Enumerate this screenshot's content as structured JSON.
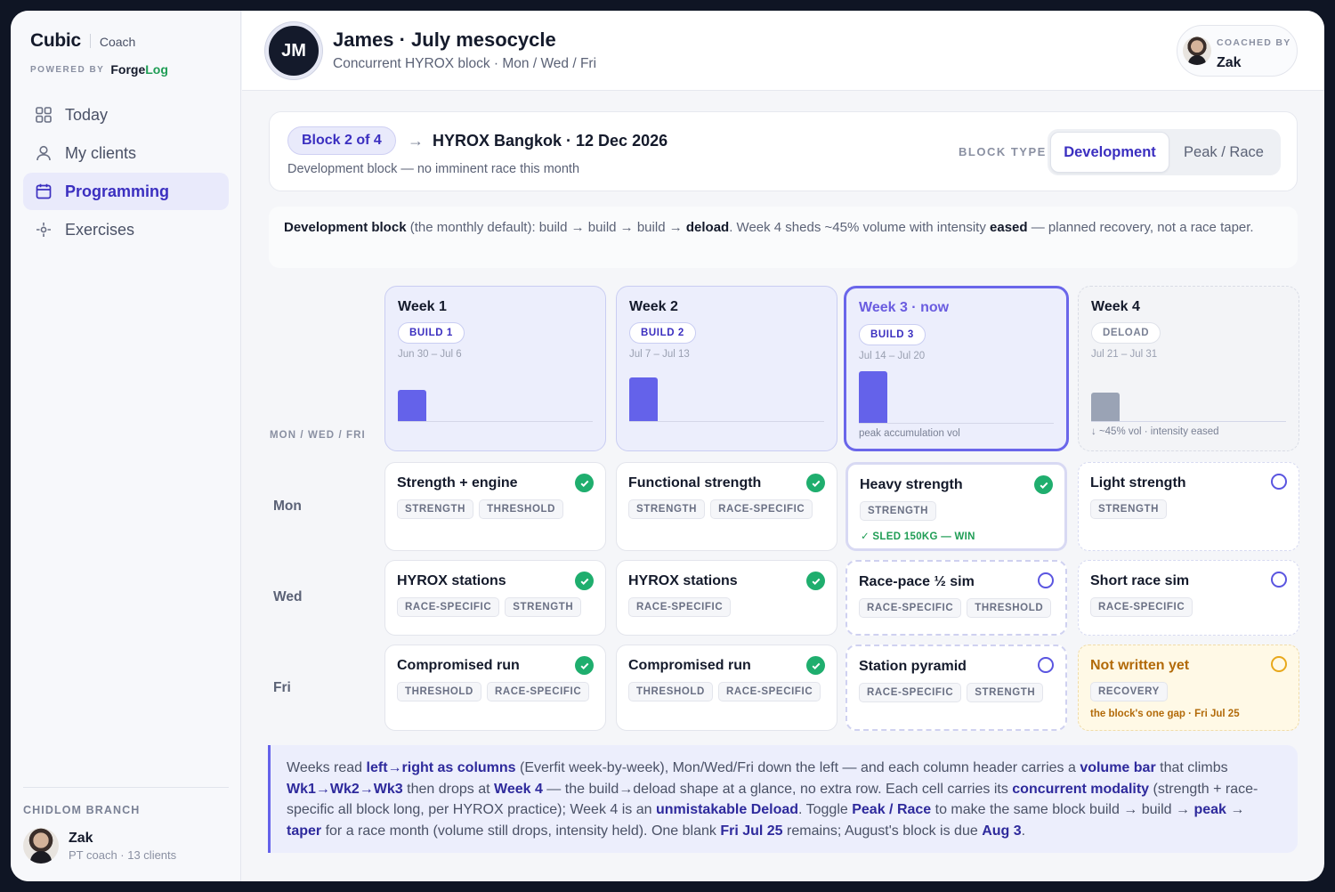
{
  "sidebar": {
    "brand": "Cubic",
    "role": "Coach",
    "powered_by": "POWERED BY",
    "forgelog_a": "Forge",
    "forgelog_b": "Log",
    "nav": [
      {
        "label": "Today",
        "icon": "grid-icon"
      },
      {
        "label": "My clients",
        "icon": "user-icon"
      },
      {
        "label": "Programming",
        "icon": "calendar-icon",
        "active": true
      },
      {
        "label": "Exercises",
        "icon": "sparkle-icon"
      }
    ],
    "branch": "CHIDLOM BRANCH",
    "user": {
      "name": "Zak",
      "sub": "PT coach · 13 clients"
    }
  },
  "header": {
    "initials": "JM",
    "title": "James · July mesocycle",
    "subtitle": "Concurrent HYROX block · Mon / Wed / Fri",
    "coached_by": "COACHED BY",
    "coach": "Zak"
  },
  "block": {
    "pill": "Block 2 of 4",
    "arrow": "→",
    "race": "HYROX Bangkok · 12 Dec 2026",
    "desc": "Development block — no imminent race this month",
    "type_label": "BLOCK TYPE",
    "options": [
      "Development",
      "Peak / Race"
    ],
    "selected": "Development"
  },
  "note": {
    "b1": "Development block",
    "t1": " (the monthly default): build → build → build → ",
    "b2": "deload",
    "t2": ". Week 4 sheds ~45% volume with intensity ",
    "b3": "eased",
    "t3": " — planned recovery, not a race taper."
  },
  "grid": {
    "days_label": "MON / WED / FRI",
    "rows": [
      "Mon",
      "Wed",
      "Fri"
    ],
    "weeks": [
      {
        "title": "Week 1",
        "tag": "BUILD 1",
        "dates": "Jun 30 – Jul 6",
        "caption": "",
        "volume": 0.6
      },
      {
        "title": "Week 2",
        "tag": "BUILD 2",
        "dates": "Jul 7 – Jul 13",
        "caption": "",
        "volume": 0.85
      },
      {
        "title": "Week 3 · now",
        "tag": "BUILD 3",
        "dates": "Jul 14 – Jul 20",
        "caption": "peak accumulation vol",
        "volume": 1.0
      },
      {
        "title": "Week 4",
        "tag": "DELOAD",
        "dates": "Jul 21 – Jul 31",
        "caption": "↓ ~45% vol · intensity eased",
        "volume": 0.55
      }
    ],
    "cells": [
      [
        {
          "title": "Strength + engine",
          "chips": [
            "STRENGTH",
            "THRESHOLD"
          ],
          "status": "done"
        },
        {
          "title": "Functional strength",
          "chips": [
            "STRENGTH",
            "RACE-SPECIFIC"
          ],
          "status": "done"
        },
        {
          "title": "Heavy strength",
          "chips": [
            "STRENGTH"
          ],
          "status": "done",
          "extra": "✓  SLED 150KG — WIN"
        },
        {
          "title": "Light strength",
          "chips": [
            "STRENGTH"
          ],
          "status": "open"
        }
      ],
      [
        {
          "title": "HYROX stations",
          "chips": [
            "RACE-SPECIFIC",
            "STRENGTH"
          ],
          "status": "done"
        },
        {
          "title": "HYROX stations",
          "chips": [
            "RACE-SPECIFIC"
          ],
          "status": "done"
        },
        {
          "title": "Race-pace ½ sim",
          "chips": [
            "RACE-SPECIFIC",
            "THRESHOLD"
          ],
          "status": "open"
        },
        {
          "title": "Short race sim",
          "chips": [
            "RACE-SPECIFIC"
          ],
          "status": "open"
        }
      ],
      [
        {
          "title": "Compromised run",
          "chips": [
            "THRESHOLD",
            "RACE-SPECIFIC"
          ],
          "status": "done"
        },
        {
          "title": "Compromised run",
          "chips": [
            "THRESHOLD",
            "RACE-SPECIFIC"
          ],
          "status": "done"
        },
        {
          "title": "Station pyramid",
          "chips": [
            "RACE-SPECIFIC",
            "STRENGTH"
          ],
          "status": "open"
        },
        {
          "title": "Not written yet",
          "chips": [
            "RECOVERY"
          ],
          "status": "gap",
          "extra": "the block's one gap · Fri Jul 25"
        }
      ]
    ]
  },
  "footer": {
    "p": [
      [
        "t",
        "Weeks read "
      ],
      [
        "b",
        "left→right as columns"
      ],
      [
        "t",
        " (Everfit week-by-week), Mon/Wed/Fri down the left — and each column header carries a "
      ],
      [
        "b",
        "volume bar"
      ],
      [
        "t",
        " that climbs "
      ],
      [
        "b",
        "Wk1→Wk2→Wk3"
      ],
      [
        "t",
        " then drops at "
      ],
      [
        "b",
        "Week 4"
      ],
      [
        "t",
        " — the build→deload shape at a glance, no extra row. Each cell carries its "
      ],
      [
        "b",
        "concurrent modality"
      ],
      [
        "t",
        " (strength + race-specific all block long, per HYROX practice); Week 4 is an "
      ],
      [
        "b",
        "unmistakable Deload"
      ],
      [
        "t",
        ". Toggle "
      ],
      [
        "b",
        "Peak / Race"
      ],
      [
        "t",
        " to make the same block build → build → "
      ],
      [
        "b",
        "peak"
      ],
      [
        "t",
        " → "
      ],
      [
        "b",
        "taper"
      ],
      [
        "t",
        " for a race month (volume still drops, intensity held). One blank "
      ],
      [
        "b",
        "Fri Jul 25"
      ],
      [
        "t",
        " remains; August's block is due "
      ],
      [
        "b",
        "Aug 3"
      ],
      [
        "t",
        "."
      ]
    ]
  },
  "colors": {
    "accent": "#6462ea",
    "done": "#1fae6e",
    "gap": "#e8a81b"
  }
}
